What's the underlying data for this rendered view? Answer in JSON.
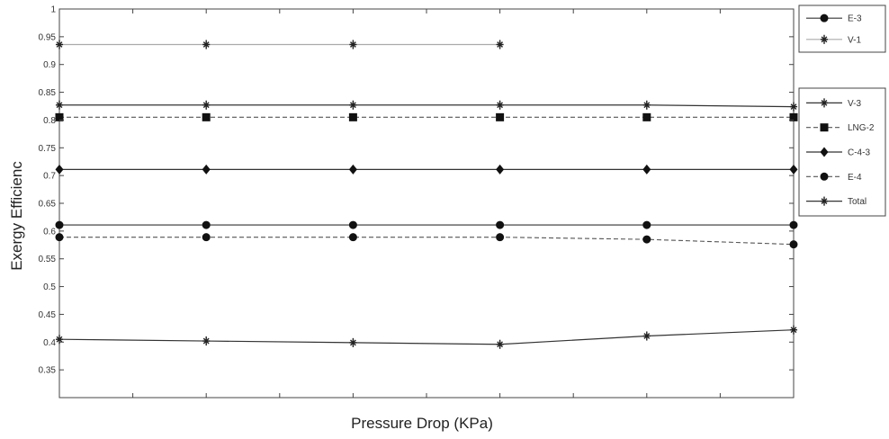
{
  "chart_data": {
    "type": "line",
    "title": "",
    "xlabel": "Pressure Drop (KPa)",
    "ylabel": "Exergy Efficienc",
    "ylim": [
      0.3,
      1.0
    ],
    "xlim": [
      0,
      10
    ],
    "yticks": [
      0.35,
      0.4,
      0.45,
      0.5,
      0.55,
      0.6,
      0.65,
      0.7,
      0.75,
      0.8,
      0.85,
      0.9,
      0.95,
      1
    ],
    "ytick_labels": [
      "0.35",
      "0.4",
      "0.45",
      "0.5",
      "0.55",
      "0.6",
      "0.65",
      "0.7",
      "0.75",
      "0.8",
      "0.85",
      "0.9",
      "0.95",
      "1"
    ],
    "xticks": [
      0,
      1,
      2,
      3,
      4,
      5,
      6,
      7,
      8,
      9,
      10
    ],
    "grid": false,
    "legend_position": "right",
    "x": [
      0,
      2,
      4,
      6,
      8,
      10
    ],
    "series": [
      {
        "name": "E-3",
        "marker": "circle",
        "line": "solid",
        "values": [
          0.611,
          0.611,
          0.611,
          0.611,
          0.611,
          0.611
        ]
      },
      {
        "name": "V-1",
        "marker": "star",
        "line": "solid-light",
        "values": [
          0.936,
          0.936,
          0.936,
          0.936,
          null,
          null
        ]
      },
      {
        "name": "V-3",
        "marker": "star",
        "line": "solid",
        "values": [
          0.827,
          0.827,
          0.827,
          0.827,
          0.827,
          0.824
        ]
      },
      {
        "name": "LNG-2",
        "marker": "square",
        "line": "dashed",
        "values": [
          0.805,
          0.805,
          0.805,
          0.805,
          0.805,
          0.805
        ]
      },
      {
        "name": "C-4-3",
        "marker": "diamond",
        "line": "solid",
        "values": [
          0.711,
          0.711,
          0.711,
          0.711,
          0.711,
          0.711
        ]
      },
      {
        "name": "E-4",
        "marker": "circle",
        "line": "dashed",
        "values": [
          0.589,
          0.589,
          0.589,
          0.589,
          0.585,
          0.576
        ]
      },
      {
        "name": "Total",
        "marker": "star",
        "line": "solid",
        "values": [
          0.405,
          0.402,
          0.399,
          0.396,
          0.411,
          0.422
        ]
      }
    ]
  }
}
